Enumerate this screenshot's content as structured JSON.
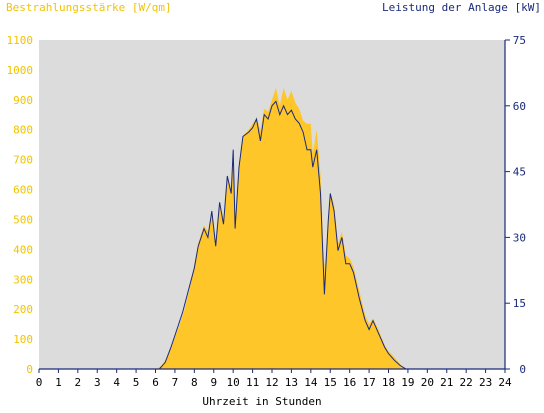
{
  "chart_data": {
    "type": "area",
    "left_axis": {
      "title": "Bestrahlungsstärke [W/qm]",
      "ticks": [
        "0",
        "100",
        "200",
        "300",
        "400",
        "500",
        "600",
        "700",
        "800",
        "900",
        "1000",
        "1100"
      ],
      "range": [
        0,
        1100
      ],
      "color": "#f5c400"
    },
    "right_axis": {
      "title": "Leistung der Anlage [kW]",
      "ticks": [
        "0",
        "15",
        "30",
        "45",
        "60",
        "75"
      ],
      "range": [
        0,
        75
      ],
      "color": "#1b2a7a"
    },
    "x_axis": {
      "title": "Uhrzeit in Stunden",
      "ticks": [
        "0",
        "1",
        "2",
        "3",
        "4",
        "5",
        "6",
        "7",
        "8",
        "9",
        "10",
        "11",
        "12",
        "13",
        "14",
        "15",
        "16",
        "17",
        "18",
        "19",
        "20",
        "21",
        "22",
        "23",
        "24"
      ],
      "range": [
        0,
        24
      ]
    },
    "plot_background": "#dcdcdc",
    "grid": false,
    "series": [
      {
        "name": "Bestrahlungsstärke",
        "axis": "left",
        "color": "#ffc629",
        "points": [
          [
            0,
            0
          ],
          [
            6.0,
            0
          ],
          [
            6.3,
            10
          ],
          [
            6.6,
            40
          ],
          [
            6.9,
            90
          ],
          [
            7.2,
            140
          ],
          [
            7.5,
            200
          ],
          [
            7.8,
            280
          ],
          [
            8.0,
            350
          ],
          [
            8.2,
            420
          ],
          [
            8.5,
            480
          ],
          [
            8.7,
            460
          ],
          [
            8.9,
            530
          ],
          [
            9.1,
            420
          ],
          [
            9.3,
            560
          ],
          [
            9.5,
            500
          ],
          [
            9.7,
            650
          ],
          [
            9.9,
            590
          ],
          [
            10.0,
            740
          ],
          [
            10.1,
            470
          ],
          [
            10.3,
            680
          ],
          [
            10.5,
            780
          ],
          [
            10.8,
            800
          ],
          [
            11.0,
            820
          ],
          [
            11.2,
            840
          ],
          [
            11.4,
            800
          ],
          [
            11.6,
            870
          ],
          [
            11.8,
            860
          ],
          [
            12.0,
            900
          ],
          [
            12.2,
            940
          ],
          [
            12.4,
            880
          ],
          [
            12.6,
            940
          ],
          [
            12.8,
            900
          ],
          [
            13.0,
            930
          ],
          [
            13.2,
            890
          ],
          [
            13.4,
            870
          ],
          [
            13.6,
            830
          ],
          [
            13.8,
            820
          ],
          [
            14.0,
            820
          ],
          [
            14.1,
            720
          ],
          [
            14.3,
            800
          ],
          [
            14.5,
            650
          ],
          [
            14.7,
            330
          ],
          [
            14.9,
            500
          ],
          [
            15.0,
            590
          ],
          [
            15.2,
            550
          ],
          [
            15.4,
            420
          ],
          [
            15.6,
            460
          ],
          [
            15.8,
            380
          ],
          [
            16.0,
            370
          ],
          [
            16.2,
            340
          ],
          [
            16.5,
            260
          ],
          [
            16.8,
            180
          ],
          [
            17.0,
            150
          ],
          [
            17.2,
            170
          ],
          [
            17.5,
            130
          ],
          [
            17.8,
            80
          ],
          [
            18.0,
            60
          ],
          [
            18.3,
            40
          ],
          [
            18.6,
            15
          ],
          [
            18.9,
            0
          ],
          [
            24,
            0
          ]
        ]
      },
      {
        "name": "Leistung der Anlage",
        "axis": "right",
        "color": "#1b2a7a",
        "points": [
          [
            0,
            0
          ],
          [
            6.2,
            0
          ],
          [
            6.5,
            1.5
          ],
          [
            6.8,
            5
          ],
          [
            7.1,
            9
          ],
          [
            7.4,
            13
          ],
          [
            7.7,
            18
          ],
          [
            8.0,
            23
          ],
          [
            8.2,
            28
          ],
          [
            8.5,
            32
          ],
          [
            8.7,
            30
          ],
          [
            8.9,
            36
          ],
          [
            9.1,
            28
          ],
          [
            9.3,
            38
          ],
          [
            9.5,
            33
          ],
          [
            9.7,
            44
          ],
          [
            9.9,
            40
          ],
          [
            10.0,
            50
          ],
          [
            10.1,
            32
          ],
          [
            10.3,
            46
          ],
          [
            10.5,
            53
          ],
          [
            10.8,
            54
          ],
          [
            11.0,
            55
          ],
          [
            11.2,
            57
          ],
          [
            11.4,
            52
          ],
          [
            11.6,
            58
          ],
          [
            11.8,
            57
          ],
          [
            12.0,
            60
          ],
          [
            12.2,
            61
          ],
          [
            12.4,
            58
          ],
          [
            12.6,
            60
          ],
          [
            12.8,
            58
          ],
          [
            13.0,
            59
          ],
          [
            13.2,
            57
          ],
          [
            13.4,
            56
          ],
          [
            13.6,
            54
          ],
          [
            13.8,
            50
          ],
          [
            14.0,
            50
          ],
          [
            14.1,
            46
          ],
          [
            14.3,
            50
          ],
          [
            14.5,
            40
          ],
          [
            14.7,
            17
          ],
          [
            14.9,
            34
          ],
          [
            15.0,
            40
          ],
          [
            15.2,
            36
          ],
          [
            15.4,
            27
          ],
          [
            15.6,
            30
          ],
          [
            15.8,
            24
          ],
          [
            16.0,
            24
          ],
          [
            16.2,
            22
          ],
          [
            16.5,
            16
          ],
          [
            16.8,
            11
          ],
          [
            17.0,
            9
          ],
          [
            17.2,
            11
          ],
          [
            17.5,
            8
          ],
          [
            17.8,
            5
          ],
          [
            18.0,
            3.5
          ],
          [
            18.3,
            2
          ],
          [
            18.6,
            0.8
          ],
          [
            18.9,
            0
          ],
          [
            24,
            0
          ]
        ]
      }
    ]
  }
}
